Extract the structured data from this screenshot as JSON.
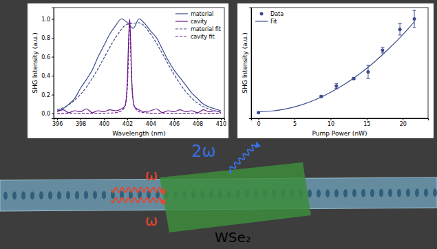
{
  "chart_data": [
    {
      "type": "line",
      "xlabel": "Wavelength (nm)",
      "ylabel": "SHG Intensity (a.u.)",
      "xlim": [
        395.7,
        410.3
      ],
      "xticks": [
        396,
        398,
        400,
        402,
        404,
        406,
        408,
        410
      ],
      "ylim": [
        -0.05,
        1.12
      ],
      "yticks": [
        {
          "value": 0,
          "label": "0.0"
        },
        0.2,
        0.4,
        0.6,
        0.8,
        {
          "value": 1,
          "label": "1.0"
        }
      ],
      "legend": "upper right",
      "series": [
        {
          "name": "material",
          "color": "#3b4a8c",
          "line_style": "solid",
          "x": [
            396,
            396.5,
            397,
            397.5,
            398,
            398.5,
            399,
            399.5,
            400,
            400.5,
            401,
            401.5,
            402,
            402.5,
            403,
            403.5,
            404,
            404.5,
            405,
            405.5,
            406,
            406.5,
            407,
            407.5,
            408,
            408.5,
            409,
            409.5,
            410
          ],
          "values": [
            0.03,
            0.05,
            0.1,
            0.16,
            0.27,
            0.36,
            0.46,
            0.6,
            0.72,
            0.84,
            0.93,
            1.0,
            0.96,
            0.9,
            1.0,
            0.95,
            0.87,
            0.8,
            0.68,
            0.56,
            0.46,
            0.38,
            0.3,
            0.22,
            0.16,
            0.1,
            0.07,
            0.05,
            0.03
          ]
        },
        {
          "name": "cavity",
          "color": "#6a1b8a",
          "line_style": "solid",
          "x": [
            396,
            396.5,
            397,
            397.5,
            398,
            398.5,
            399,
            399.5,
            400,
            400.5,
            401,
            401.5,
            401.8,
            402.0,
            402.1,
            402.2,
            402.3,
            402.4,
            402.6,
            403,
            403.5,
            404,
            404.5,
            405,
            405.5,
            406,
            406.5,
            407,
            407.5,
            408,
            408.5,
            409,
            409.5,
            410
          ],
          "values": [
            0.02,
            0.04,
            0.01,
            0.03,
            0.02,
            0.05,
            0.01,
            0.03,
            0.02,
            0.04,
            0.03,
            0.05,
            0.08,
            0.35,
            0.75,
            1.0,
            0.7,
            0.3,
            0.07,
            0.04,
            0.02,
            0.03,
            0.05,
            0.01,
            0.03,
            0.02,
            0.04,
            0.02,
            0.03,
            0.01,
            0.04,
            0.02,
            0.03,
            0.01
          ]
        },
        {
          "name": "material fit",
          "color": "#3b4a8c",
          "line_style": "dashed",
          "x": [
            396,
            397,
            398,
            399,
            400,
            401,
            402,
            403,
            404,
            405,
            406,
            407,
            408,
            409,
            410
          ],
          "values": [
            0.039,
            0.095,
            0.203,
            0.372,
            0.588,
            0.803,
            0.944,
            0.959,
            0.839,
            0.634,
            0.413,
            0.232,
            0.112,
            0.047,
            0.017
          ]
        },
        {
          "name": "cavity fit",
          "color": "#6a1b8a",
          "line_style": "dashed",
          "x": [
            396,
            400,
            401,
            401.5,
            401.8,
            402,
            402.1,
            402.2,
            402.3,
            402.4,
            402.6,
            403,
            403.5,
            404,
            410
          ],
          "values": [
            0.0,
            0.004,
            0.01,
            0.03,
            0.08,
            0.27,
            0.6,
            0.98,
            0.6,
            0.27,
            0.08,
            0.02,
            0.01,
            0.004,
            0.0
          ]
        }
      ]
    },
    {
      "type": "scatter",
      "xlabel": "Pump Power (nW)",
      "ylabel": "SHG Intensity (a.u.)",
      "xlim": [
        -1,
        23.5
      ],
      "xticks": [
        0,
        5,
        10,
        15,
        20
      ],
      "ylim": [
        -0.05,
        1.12
      ],
      "tick_labels": "x",
      "legend": "upper left",
      "series": [
        {
          "name": "Data",
          "type": "scatter",
          "marker": "circle",
          "color": "#3b4a8c",
          "x": [
            0,
            8.7,
            10.8,
            13.2,
            15.2,
            17.2,
            19.6,
            21.6
          ],
          "values": [
            0.01,
            0.18,
            0.29,
            0.37,
            0.44,
            0.67,
            0.89,
            1.0
          ],
          "errors": [
            0.005,
            0.01,
            0.025,
            0.01,
            0.07,
            0.03,
            0.06,
            0.09
          ]
        },
        {
          "name": "Fit",
          "type": "line",
          "color": "#3b4a8c",
          "line_style": "solid",
          "x": [
            0,
            2,
            4,
            6,
            8,
            10,
            12,
            14,
            16,
            18,
            20,
            21.6
          ],
          "values": [
            0.02,
            0.028,
            0.053,
            0.093,
            0.15,
            0.224,
            0.313,
            0.419,
            0.541,
            0.68,
            0.834,
            0.97
          ]
        }
      ]
    }
  ],
  "diagram": {
    "pump_top": "ω",
    "pump_bottom": "ω",
    "harmonic": "2ω",
    "material": "WSe₂"
  }
}
